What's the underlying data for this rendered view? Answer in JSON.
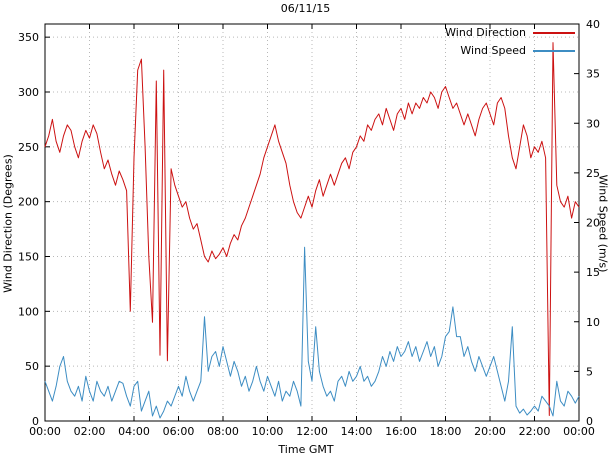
{
  "chart_data": {
    "type": "line",
    "title": "06/11/15",
    "xlabel": "Time GMT",
    "x_range_hours": [
      0,
      24
    ],
    "x_tick_step_hours": 2,
    "x_ticks": [
      "00:00",
      "02:00",
      "04:00",
      "06:00",
      "08:00",
      "10:00",
      "12:00",
      "14:00",
      "16:00",
      "18:00",
      "20:00",
      "22:00",
      "00:00"
    ],
    "grid": "dotted",
    "legend_position": "top-right",
    "left_axis": {
      "label": "Wind Direction (Degrees)",
      "ticks": [
        0,
        50,
        100,
        150,
        200,
        250,
        300,
        350
      ],
      "range": [
        0,
        362
      ]
    },
    "right_axis": {
      "label": "Wind Speed (m/s)",
      "ticks": [
        0,
        5,
        10,
        15,
        20,
        25,
        30,
        35,
        40
      ],
      "range": [
        0,
        40
      ]
    },
    "sample_interval_minutes": 10,
    "series": [
      {
        "name": "Wind Direction",
        "axis": "left",
        "color": "#cc1111",
        "values": [
          250,
          260,
          275,
          255,
          245,
          260,
          270,
          265,
          250,
          240,
          255,
          265,
          258,
          270,
          262,
          245,
          230,
          238,
          225,
          215,
          228,
          220,
          210,
          100,
          240,
          320,
          330,
          250,
          150,
          90,
          310,
          60,
          320,
          55,
          230,
          215,
          205,
          195,
          200,
          185,
          175,
          180,
          165,
          150,
          145,
          155,
          148,
          152,
          158,
          150,
          162,
          170,
          165,
          178,
          185,
          195,
          205,
          215,
          225,
          240,
          250,
          260,
          270,
          255,
          245,
          235,
          215,
          200,
          190,
          185,
          195,
          205,
          195,
          210,
          220,
          205,
          215,
          225,
          215,
          225,
          235,
          240,
          230,
          245,
          250,
          260,
          255,
          270,
          265,
          275,
          280,
          270,
          285,
          275,
          265,
          280,
          285,
          275,
          290,
          280,
          290,
          285,
          295,
          290,
          300,
          295,
          285,
          300,
          305,
          295,
          285,
          290,
          280,
          270,
          280,
          270,
          260,
          275,
          285,
          290,
          280,
          270,
          290,
          295,
          285,
          260,
          240,
          230,
          250,
          270,
          260,
          240,
          250,
          245,
          255,
          240,
          5,
          345,
          215,
          200,
          195,
          205,
          185,
          200,
          195
        ]
      },
      {
        "name": "Wind Speed",
        "axis": "right",
        "color": "#3d8dc3",
        "values": [
          4.0,
          3.0,
          2.0,
          3.5,
          5.5,
          6.5,
          4.0,
          3.0,
          2.5,
          3.5,
          2.0,
          4.5,
          3.0,
          2.0,
          4.0,
          3.0,
          2.5,
          3.5,
          2.0,
          3.0,
          4.0,
          3.8,
          2.5,
          1.5,
          3.5,
          4.0,
          1.0,
          2.0,
          3.0,
          0.5,
          1.5,
          0.3,
          1.0,
          2.0,
          1.5,
          2.5,
          3.5,
          2.5,
          4.5,
          3.0,
          2.0,
          3.0,
          4.0,
          10.5,
          5.0,
          6.5,
          7.0,
          5.5,
          7.5,
          6.0,
          4.5,
          6.0,
          5.0,
          3.5,
          4.5,
          3.0,
          4.0,
          5.5,
          4.0,
          3.0,
          4.5,
          3.5,
          2.5,
          4.0,
          2.0,
          3.0,
          2.5,
          4.0,
          3.0,
          1.5,
          17.5,
          6.0,
          4.0,
          9.5,
          5.0,
          3.5,
          2.5,
          3.0,
          2.0,
          4.0,
          4.5,
          3.5,
          5.0,
          4.0,
          4.5,
          5.5,
          4.0,
          4.5,
          3.5,
          4.0,
          5.0,
          6.5,
          5.5,
          7.0,
          6.0,
          7.5,
          6.5,
          7.0,
          8.0,
          6.5,
          7.5,
          6.0,
          7.0,
          8.0,
          6.5,
          7.5,
          5.5,
          6.5,
          8.5,
          9.0,
          11.5,
          8.5,
          8.5,
          6.5,
          7.5,
          6.0,
          5.0,
          6.5,
          5.5,
          4.5,
          5.5,
          6.5,
          5.0,
          3.5,
          2.0,
          4.0,
          9.5,
          1.5,
          0.8,
          1.2,
          0.6,
          1.0,
          1.5,
          1.0,
          2.5,
          2.0,
          1.5,
          0.5,
          4.0,
          2.0,
          1.5,
          3.0,
          2.5,
          1.8,
          2.5
        ]
      }
    ],
    "colors": {
      "grid": "#b8b8b8",
      "border": "#000000",
      "background": "#ffffff"
    }
  }
}
